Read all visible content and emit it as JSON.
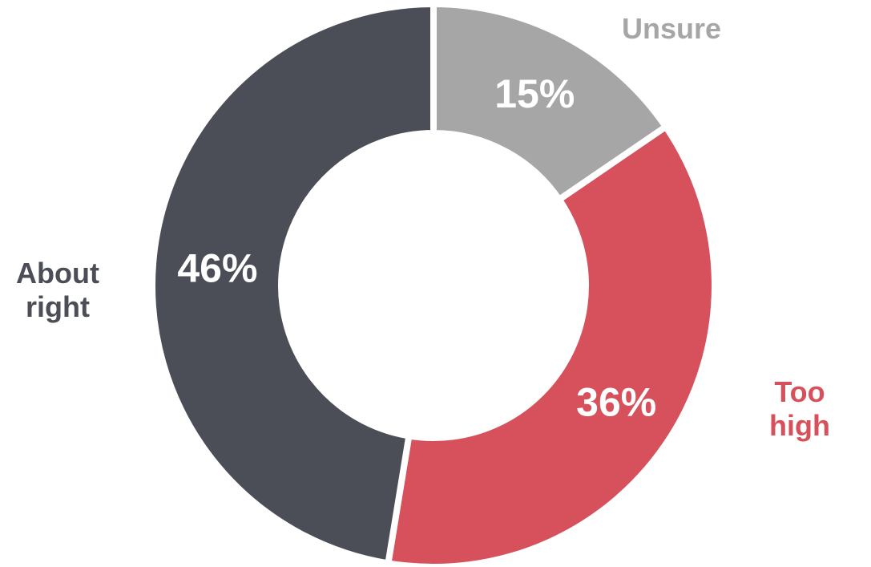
{
  "chart_data": {
    "type": "pie",
    "categories": [
      "Unsure",
      "Too high",
      "About right"
    ],
    "values": [
      15,
      36,
      46
    ],
    "value_labels": [
      "15%",
      "36%",
      "46%"
    ],
    "colors": [
      "#a6a6a6",
      "#d6515c",
      "#4b4e56"
    ],
    "donut": true
  }
}
